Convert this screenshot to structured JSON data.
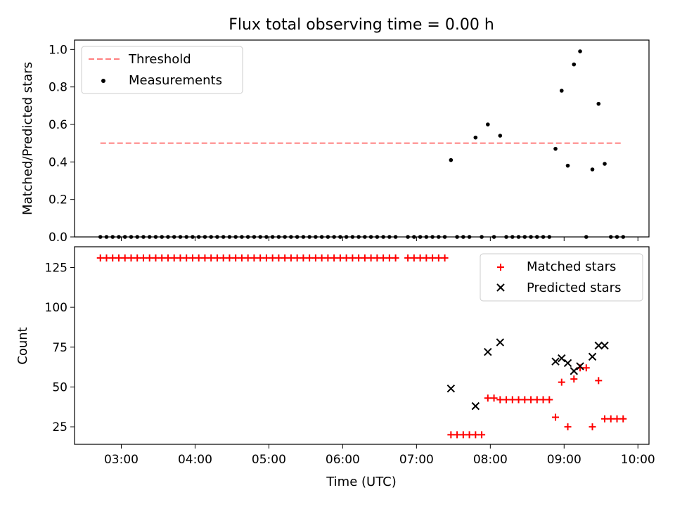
{
  "figure": {
    "title": "Flux total observing time = 0.00 h",
    "xlabel": "Time (UTC)"
  },
  "colors": {
    "threshold": "#ff7f7f",
    "measurements": "#000000",
    "matched": "#ff0000",
    "predicted": "#000000"
  },
  "chart_data": [
    {
      "type": "scatter",
      "ylabel": "Matched/Predicted stars",
      "xlim": [
        "02:22",
        "10:09"
      ],
      "ylim": [
        0,
        1.05
      ],
      "xticks": [
        "03:00",
        "04:00",
        "05:00",
        "06:00",
        "07:00",
        "08:00",
        "09:00",
        "10:00"
      ],
      "yticks": [
        0.0,
        0.2,
        0.4,
        0.6,
        0.8,
        1.0
      ],
      "legend": {
        "position": "top-left"
      },
      "series": [
        {
          "name": "Threshold",
          "style": "dashed-line",
          "x": [
            "02:43",
            "09:48"
          ],
          "y": [
            0.5,
            0.5
          ]
        },
        {
          "name": "Measurements",
          "style": "dot",
          "points": [
            [
              "02:43",
              0
            ],
            [
              "02:48",
              0
            ],
            [
              "02:53",
              0
            ],
            [
              "02:58",
              0
            ],
            [
              "03:03",
              0
            ],
            [
              "03:08",
              0
            ],
            [
              "03:13",
              0
            ],
            [
              "03:18",
              0
            ],
            [
              "03:23",
              0
            ],
            [
              "03:28",
              0
            ],
            [
              "03:33",
              0
            ],
            [
              "03:38",
              0
            ],
            [
              "03:43",
              0
            ],
            [
              "03:48",
              0
            ],
            [
              "03:53",
              0
            ],
            [
              "03:58",
              0
            ],
            [
              "04:03",
              0
            ],
            [
              "04:08",
              0
            ],
            [
              "04:13",
              0
            ],
            [
              "04:18",
              0
            ],
            [
              "04:23",
              0
            ],
            [
              "04:28",
              0
            ],
            [
              "04:33",
              0
            ],
            [
              "04:38",
              0
            ],
            [
              "04:43",
              0
            ],
            [
              "04:48",
              0
            ],
            [
              "04:53",
              0
            ],
            [
              "04:58",
              0
            ],
            [
              "05:03",
              0
            ],
            [
              "05:08",
              0
            ],
            [
              "05:13",
              0
            ],
            [
              "05:18",
              0
            ],
            [
              "05:23",
              0
            ],
            [
              "05:28",
              0
            ],
            [
              "05:33",
              0
            ],
            [
              "05:38",
              0
            ],
            [
              "05:43",
              0
            ],
            [
              "05:48",
              0
            ],
            [
              "05:53",
              0
            ],
            [
              "05:58",
              0
            ],
            [
              "06:03",
              0
            ],
            [
              "06:08",
              0
            ],
            [
              "06:13",
              0
            ],
            [
              "06:18",
              0
            ],
            [
              "06:23",
              0
            ],
            [
              "06:28",
              0
            ],
            [
              "06:33",
              0
            ],
            [
              "06:38",
              0
            ],
            [
              "06:43",
              0
            ],
            [
              "06:53",
              0
            ],
            [
              "06:58",
              0
            ],
            [
              "07:03",
              0
            ],
            [
              "07:08",
              0
            ],
            [
              "07:13",
              0
            ],
            [
              "07:18",
              0
            ],
            [
              "07:23",
              0
            ],
            [
              "07:28",
              0.41
            ],
            [
              "07:33",
              0
            ],
            [
              "07:38",
              0
            ],
            [
              "07:43",
              0
            ],
            [
              "07:48",
              0.53
            ],
            [
              "07:53",
              0
            ],
            [
              "07:58",
              0.6
            ],
            [
              "08:03",
              0
            ],
            [
              "08:08",
              0.54
            ],
            [
              "08:13",
              0
            ],
            [
              "08:18",
              0
            ],
            [
              "08:23",
              0
            ],
            [
              "08:28",
              0
            ],
            [
              "08:33",
              0
            ],
            [
              "08:38",
              0
            ],
            [
              "08:43",
              0
            ],
            [
              "08:48",
              0
            ],
            [
              "08:53",
              0.47
            ],
            [
              "08:58",
              0.78
            ],
            [
              "09:03",
              0.38
            ],
            [
              "09:08",
              0.92
            ],
            [
              "09:13",
              0.99
            ],
            [
              "09:18",
              0
            ],
            [
              "09:23",
              0.36
            ],
            [
              "09:28",
              0.71
            ],
            [
              "09:33",
              0.39
            ],
            [
              "09:38",
              0
            ],
            [
              "09:43",
              0
            ],
            [
              "09:48",
              0
            ]
          ]
        }
      ]
    },
    {
      "type": "scatter",
      "ylabel": "Count",
      "xlim": [
        "02:22",
        "10:09"
      ],
      "ylim": [
        14,
        138
      ],
      "xticks": [
        "03:00",
        "04:00",
        "05:00",
        "06:00",
        "07:00",
        "08:00",
        "09:00",
        "10:00"
      ],
      "yticks": [
        25,
        50,
        75,
        100,
        125
      ],
      "legend": {
        "position": "top-right"
      },
      "series": [
        {
          "name": "Matched stars",
          "marker": "+",
          "points": [
            [
              "02:43",
              131
            ],
            [
              "02:48",
              131
            ],
            [
              "02:53",
              131
            ],
            [
              "02:58",
              131
            ],
            [
              "03:03",
              131
            ],
            [
              "03:08",
              131
            ],
            [
              "03:13",
              131
            ],
            [
              "03:18",
              131
            ],
            [
              "03:23",
              131
            ],
            [
              "03:28",
              131
            ],
            [
              "03:33",
              131
            ],
            [
              "03:38",
              131
            ],
            [
              "03:43",
              131
            ],
            [
              "03:48",
              131
            ],
            [
              "03:53",
              131
            ],
            [
              "03:58",
              131
            ],
            [
              "04:03",
              131
            ],
            [
              "04:08",
              131
            ],
            [
              "04:13",
              131
            ],
            [
              "04:18",
              131
            ],
            [
              "04:23",
              131
            ],
            [
              "04:28",
              131
            ],
            [
              "04:33",
              131
            ],
            [
              "04:38",
              131
            ],
            [
              "04:43",
              131
            ],
            [
              "04:48",
              131
            ],
            [
              "04:53",
              131
            ],
            [
              "04:58",
              131
            ],
            [
              "05:03",
              131
            ],
            [
              "05:08",
              131
            ],
            [
              "05:13",
              131
            ],
            [
              "05:18",
              131
            ],
            [
              "05:23",
              131
            ],
            [
              "05:28",
              131
            ],
            [
              "05:33",
              131
            ],
            [
              "05:38",
              131
            ],
            [
              "05:43",
              131
            ],
            [
              "05:48",
              131
            ],
            [
              "05:53",
              131
            ],
            [
              "05:58",
              131
            ],
            [
              "06:03",
              131
            ],
            [
              "06:08",
              131
            ],
            [
              "06:13",
              131
            ],
            [
              "06:18",
              131
            ],
            [
              "06:23",
              131
            ],
            [
              "06:28",
              131
            ],
            [
              "06:33",
              131
            ],
            [
              "06:38",
              131
            ],
            [
              "06:43",
              131
            ],
            [
              "06:53",
              131
            ],
            [
              "06:58",
              131
            ],
            [
              "07:03",
              131
            ],
            [
              "07:08",
              131
            ],
            [
              "07:13",
              131
            ],
            [
              "07:18",
              131
            ],
            [
              "07:23",
              131
            ],
            [
              "07:28",
              20
            ],
            [
              "07:33",
              20
            ],
            [
              "07:38",
              20
            ],
            [
              "07:43",
              20
            ],
            [
              "07:48",
              20
            ],
            [
              "07:53",
              20
            ],
            [
              "07:58",
              43
            ],
            [
              "08:03",
              43
            ],
            [
              "08:08",
              42
            ],
            [
              "08:13",
              42
            ],
            [
              "08:18",
              42
            ],
            [
              "08:23",
              42
            ],
            [
              "08:28",
              42
            ],
            [
              "08:33",
              42
            ],
            [
              "08:38",
              42
            ],
            [
              "08:43",
              42
            ],
            [
              "08:48",
              42
            ],
            [
              "08:53",
              31
            ],
            [
              "08:58",
              53
            ],
            [
              "09:03",
              25
            ],
            [
              "09:08",
              55
            ],
            [
              "09:13",
              62
            ],
            [
              "09:18",
              62
            ],
            [
              "09:23",
              25
            ],
            [
              "09:28",
              54
            ],
            [
              "09:33",
              30
            ],
            [
              "09:38",
              30
            ],
            [
              "09:43",
              30
            ],
            [
              "09:48",
              30
            ]
          ]
        },
        {
          "name": "Predicted stars",
          "marker": "x",
          "points": [
            [
              "07:28",
              49
            ],
            [
              "07:48",
              38
            ],
            [
              "07:58",
              72
            ],
            [
              "08:08",
              78
            ],
            [
              "08:53",
              66
            ],
            [
              "08:58",
              68
            ],
            [
              "09:03",
              65
            ],
            [
              "09:08",
              60
            ],
            [
              "09:13",
              63
            ],
            [
              "09:23",
              69
            ],
            [
              "09:28",
              76
            ],
            [
              "09:33",
              76
            ]
          ]
        }
      ]
    }
  ]
}
